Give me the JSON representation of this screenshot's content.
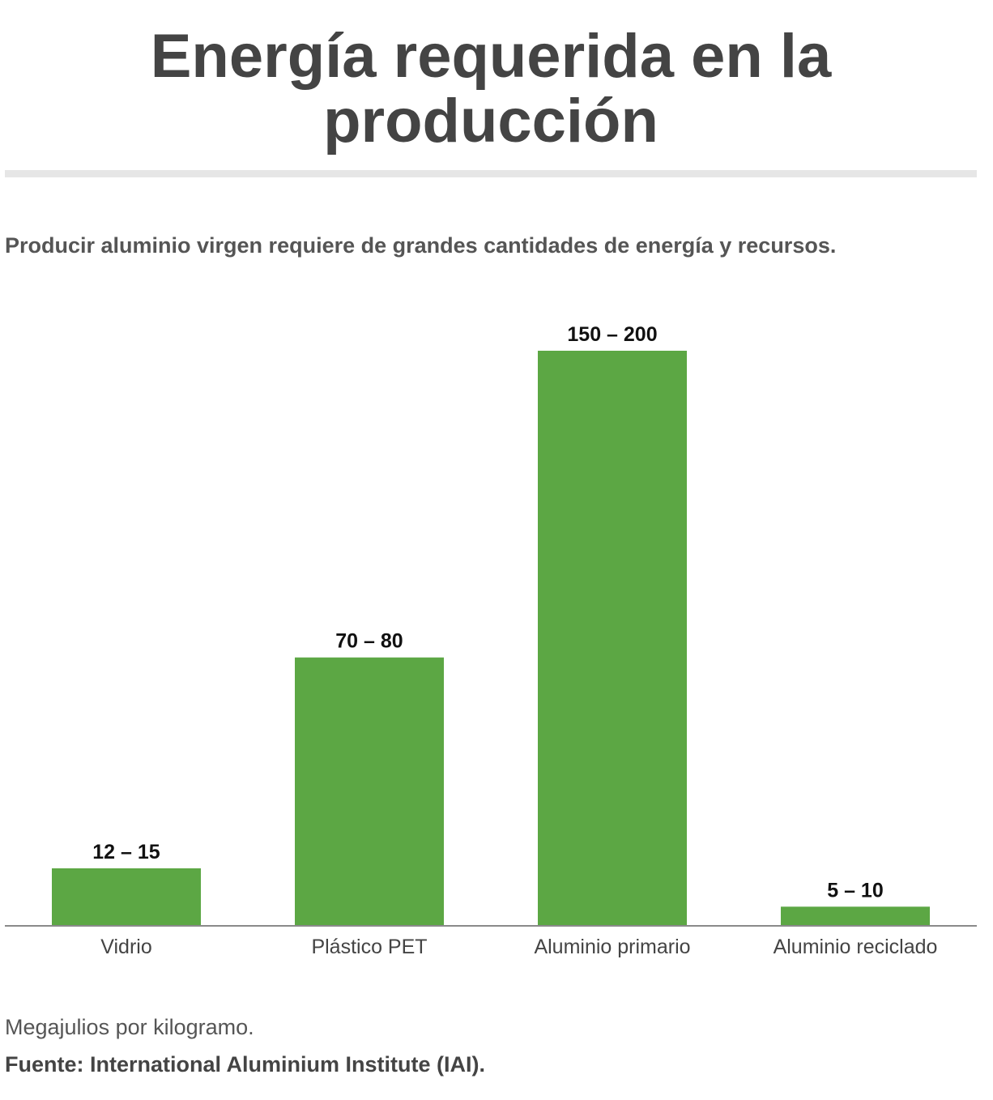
{
  "header": {
    "title": "Energía requerida en la producción",
    "subtitle": "Producir aluminio virgen requiere de grandes cantidades de energía y recursos."
  },
  "footer": {
    "note": "Megajulios por kilogramo.",
    "source": "Fuente: International Aluminium Institute (IAI)."
  },
  "colors": {
    "bar": "#5ca744",
    "axis": "#8a8a8a",
    "value_label": "#111111",
    "category_label": "#444444"
  },
  "chart_data": {
    "type": "bar",
    "categories": [
      "Vidrio",
      "Plástico PET",
      "Aluminio primario",
      "Aluminio reciclado"
    ],
    "values": [
      15,
      70,
      150,
      5
    ],
    "data_labels": [
      "12 – 15",
      "70 – 80",
      "150 – 200",
      "5 – 10"
    ],
    "title": "Energía requerida en la producción",
    "subtitle": "Producir aluminio virgen requiere de grandes cantidades de energía y recursos.",
    "ylim": [
      0,
      150
    ],
    "grid": false,
    "legend": "none",
    "value_axis_visible": false
  }
}
